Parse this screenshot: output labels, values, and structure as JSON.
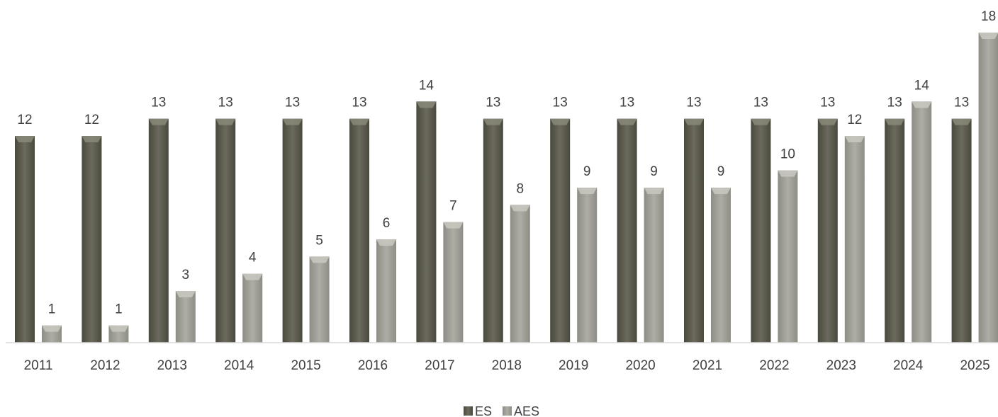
{
  "chart_data": {
    "type": "bar",
    "categories": [
      "2011",
      "2012",
      "2013",
      "2014",
      "2015",
      "2016",
      "2017",
      "2018",
      "2019",
      "2020",
      "2021",
      "2022",
      "2023",
      "2024",
      "2025"
    ],
    "series": [
      {
        "name": "ES",
        "values": [
          12,
          12,
          13,
          13,
          13,
          13,
          14,
          13,
          13,
          13,
          13,
          13,
          13,
          13,
          13
        ],
        "color": "#605f52"
      },
      {
        "name": "AES",
        "values": [
          1,
          1,
          3,
          4,
          5,
          6,
          7,
          8,
          9,
          9,
          9,
          10,
          12,
          14,
          18
        ],
        "color": "#a3a29a"
      }
    ],
    "ylim": [
      0,
      18
    ],
    "grid": false,
    "legend": "bottom",
    "data_labels": true
  }
}
